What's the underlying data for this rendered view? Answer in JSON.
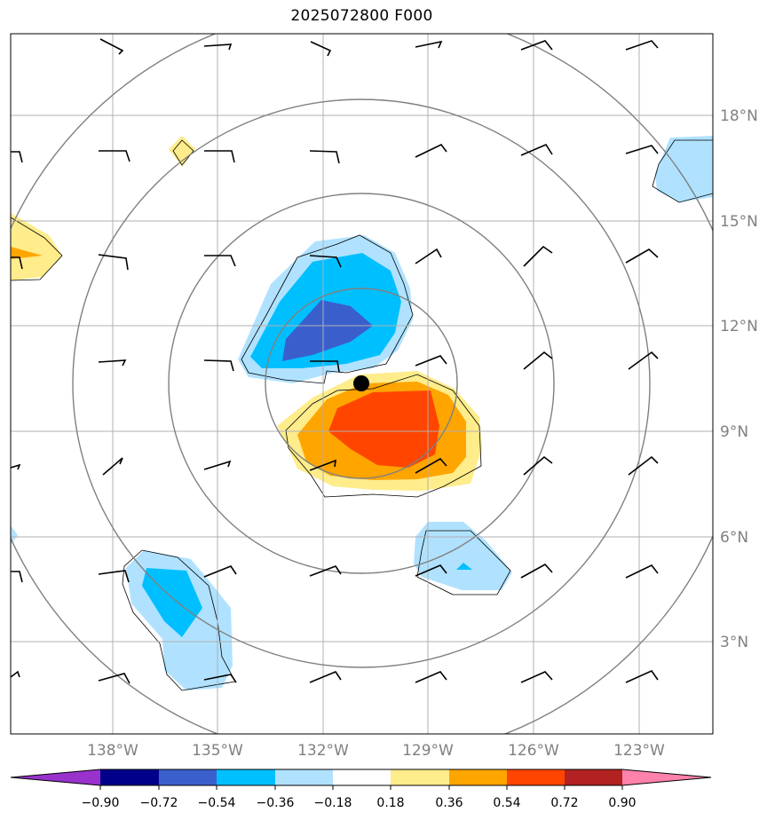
{
  "title": "2025072800 F000",
  "lat_labels": [
    "18°N",
    "15°N",
    "12°N",
    "9°N",
    "6°N",
    "3°N"
  ],
  "lon_labels": [
    "138°W",
    "135°W",
    "132°W",
    "129°W",
    "126°W",
    "123°W"
  ],
  "colorbar": {
    "ticks": [
      "−0.90",
      "−0.72",
      "−0.54",
      "−0.36",
      "−0.18",
      "0.18",
      "0.36",
      "0.54",
      "0.72",
      "0.90"
    ],
    "colors": [
      "#9932cc",
      "#00008b",
      "#3a5fcd",
      "#00bfff",
      "#b0e2ff",
      "#ffffff",
      "#ffec8b",
      "#ffa500",
      "#ff4500",
      "#b22222",
      "#ff82ab"
    ]
  },
  "storm_center": {
    "lon": "130.9°W",
    "lat": "10.3°N"
  }
}
